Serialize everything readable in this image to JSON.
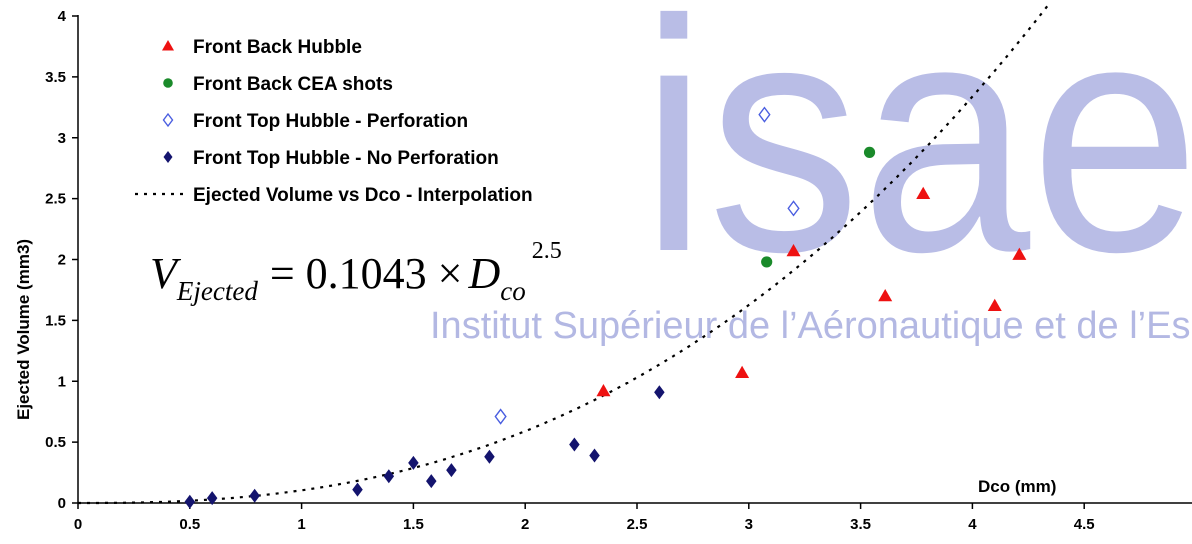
{
  "chart_data": {
    "type": "scatter",
    "xlabel": "Dco (mm)",
    "ylabel": "Ejected Volume (mm3)",
    "xlim": [
      0,
      5
    ],
    "ylim": [
      0,
      4
    ],
    "x_ticks": [
      "0",
      "0.5",
      "1",
      "1.5",
      "2",
      "2.5",
      "3",
      "3.5",
      "4",
      "4.5"
    ],
    "y_ticks": [
      "0",
      "0.5",
      "1",
      "1.5",
      "2",
      "2.5",
      "3",
      "3.5",
      "4"
    ],
    "grid": false,
    "legend_position": "top-left",
    "series": [
      {
        "name": "Front Back Hubble",
        "marker": "triangle",
        "color": "#ee1111",
        "points": [
          [
            2.35,
            0.92
          ],
          [
            2.97,
            1.07
          ],
          [
            3.2,
            2.07
          ],
          [
            3.61,
            1.7
          ],
          [
            3.78,
            2.54
          ],
          [
            4.1,
            1.62
          ],
          [
            4.21,
            2.04
          ]
        ]
      },
      {
        "name": "Front Back CEA shots",
        "marker": "circle",
        "color": "#1a8a2a",
        "points": [
          [
            3.08,
            1.98
          ],
          [
            3.54,
            2.88
          ]
        ]
      },
      {
        "name": "Front Top Hubble - Perforation",
        "marker": "diamond-open",
        "color": "#4a5ee0",
        "points": [
          [
            1.89,
            0.71
          ],
          [
            3.07,
            3.19
          ],
          [
            3.2,
            2.42
          ]
        ]
      },
      {
        "name": "Front Top Hubble - No Perforation",
        "marker": "diamond",
        "color": "#14146e",
        "points": [
          [
            0.5,
            0.01
          ],
          [
            0.6,
            0.04
          ],
          [
            0.79,
            0.06
          ],
          [
            1.25,
            0.11
          ],
          [
            1.39,
            0.22
          ],
          [
            1.5,
            0.33
          ],
          [
            1.58,
            0.18
          ],
          [
            1.67,
            0.27
          ],
          [
            1.84,
            0.38
          ],
          [
            2.22,
            0.48
          ],
          [
            2.31,
            0.39
          ],
          [
            2.6,
            0.91
          ]
        ]
      }
    ],
    "fit": {
      "name": "Ejected Volume vs Dco - Interpolation",
      "style": "dotted",
      "color": "#000000",
      "coefficient": 0.1043,
      "exponent": 2.5
    },
    "annotation": {
      "v": "V",
      "v_sub": "Ejected",
      "equals_times": "= 0.1043 ×",
      "d": "D",
      "d_sub": "co",
      "exponent": "2.5"
    }
  },
  "watermark": {
    "logo": "isae",
    "subtitle": "Institut Supérieur de l’Aéronautique et de l’Espace"
  }
}
